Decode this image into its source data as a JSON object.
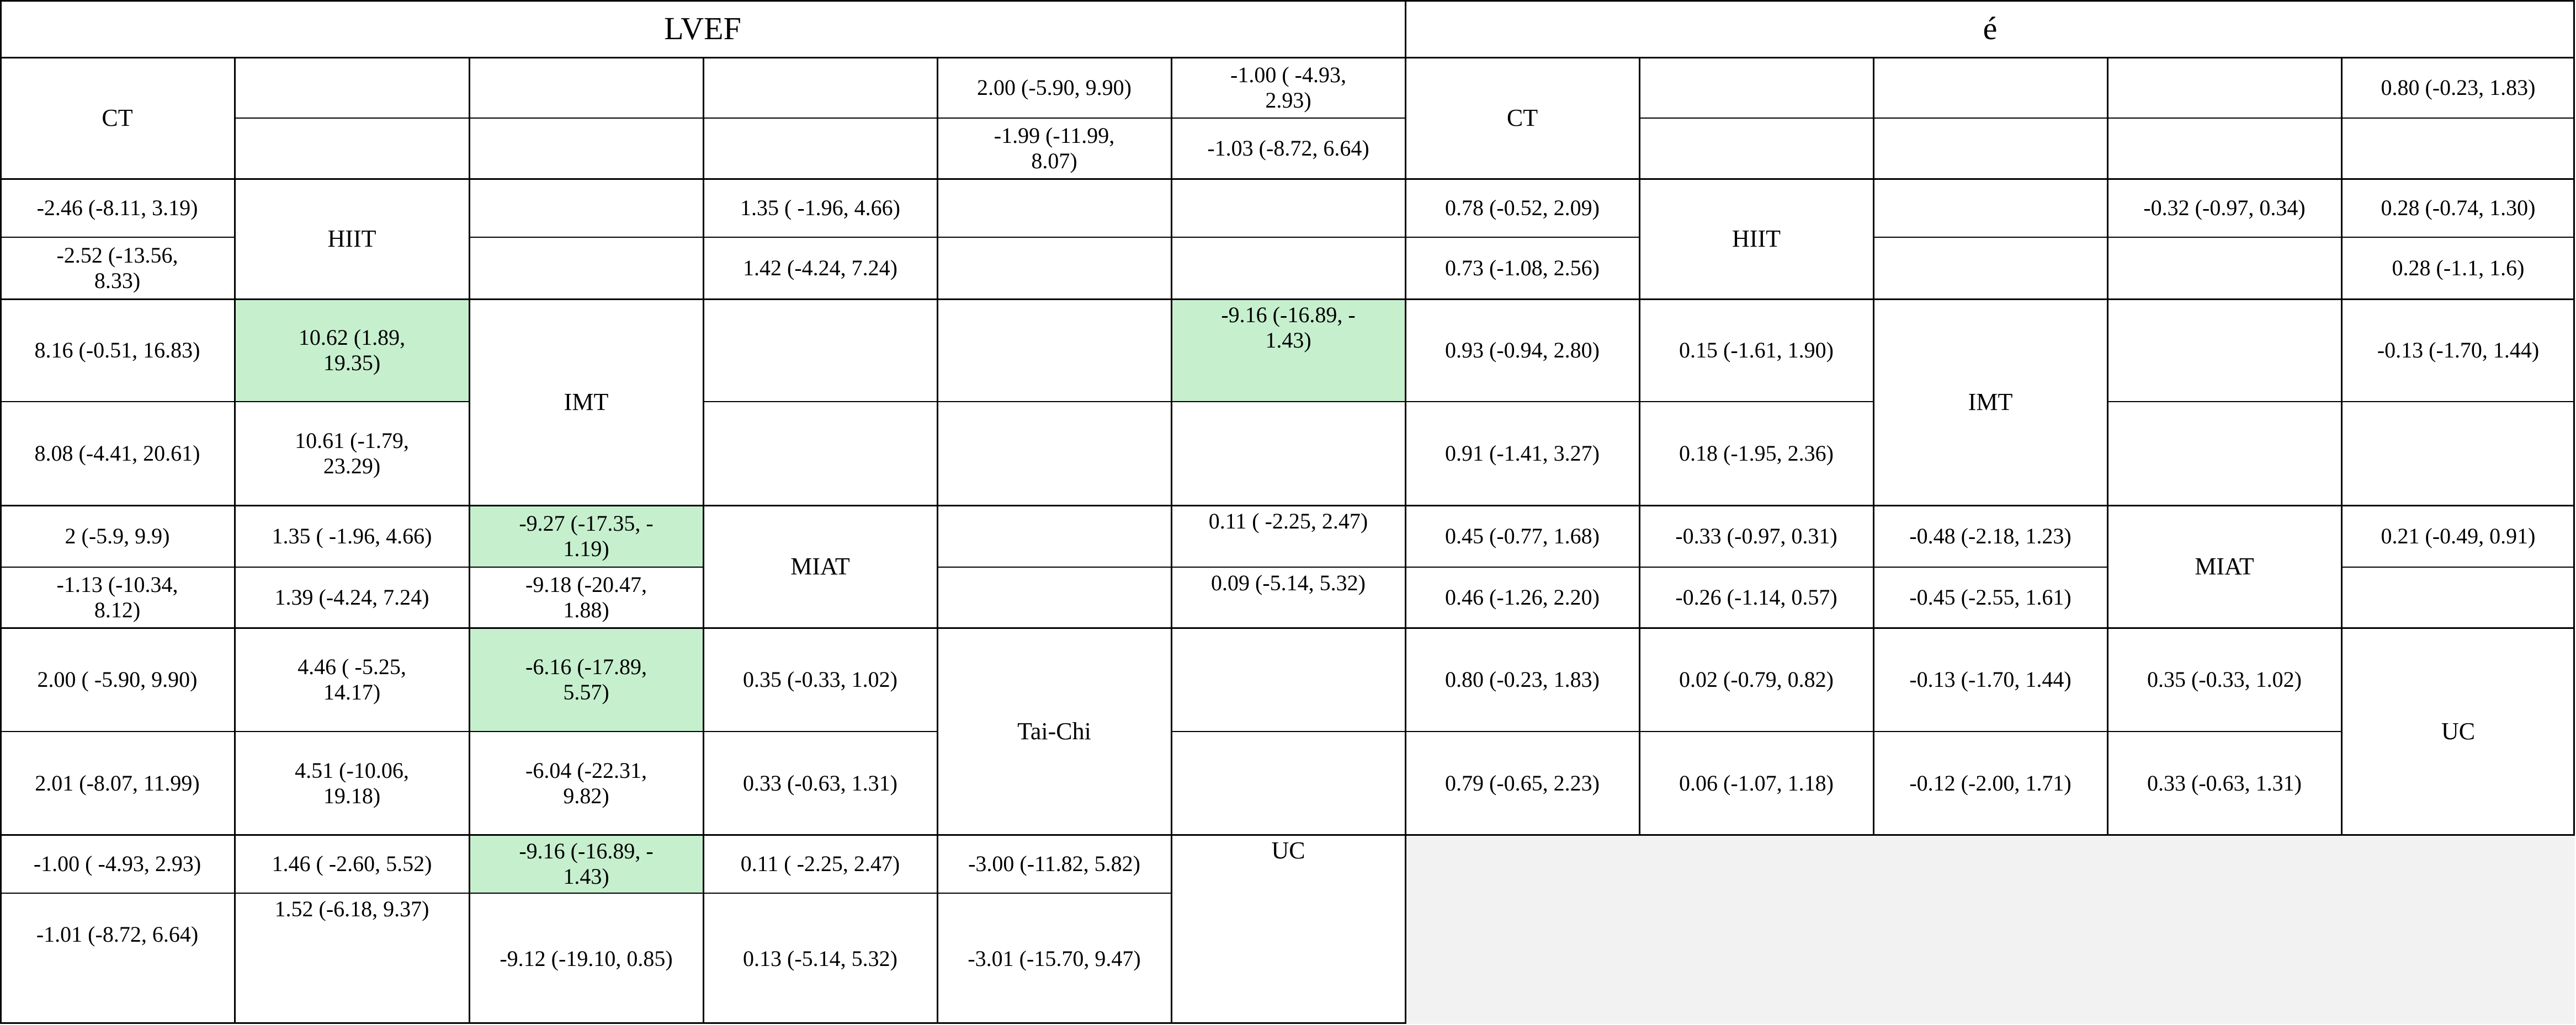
{
  "colors": {
    "grid": "#000000",
    "highlight": "#c6efce",
    "blank": "#f2f2f2"
  },
  "lvef": {
    "title": "LVEF",
    "labels": {
      "ct": "CT",
      "hiit": "HIIT",
      "imt": "IMT",
      "miat": "MIAT",
      "taichi": "Tai-Chi",
      "uc": "UC"
    },
    "ct_taichi_a": "2.00 (-5.90, 9.90)",
    "ct_uc_a": "-1.00 ( -4.93,\n2.93)",
    "ct_taichi_b": "-1.99 (-11.99,\n8.07)",
    "ct_uc_b": "-1.03 (-8.72, 6.64)",
    "hiit_ct_a": "-2.46 (-8.11, 3.19)",
    "hiit_miat_a": "1.35 ( -1.96, 4.66)",
    "hiit_ct_b": "-2.52 (-13.56,\n8.33)",
    "hiit_miat_b": "1.42 (-4.24, 7.24)",
    "imt_ct_a": "8.16 (-0.51, 16.83)",
    "imt_hiit_a": "10.62 (1.89,\n19.35)",
    "imt_uc_a": "-9.16 (-16.89, -\n1.43)",
    "imt_ct_b": "8.08 (-4.41, 20.61)",
    "imt_hiit_b": "10.61 (-1.79,\n23.29)",
    "miat_ct_a": "2 (-5.9, 9.9)",
    "miat_hiit_a": "1.35 ( -1.96, 4.66)",
    "miat_imt_a": "-9.27 (-17.35, -\n1.19)",
    "miat_uc_a": "0.11 ( -2.25, 2.47)",
    "miat_ct_b": "-1.13 (-10.34,\n8.12)",
    "miat_hiit_b": "1.39 (-4.24, 7.24)",
    "miat_imt_b": "-9.18 (-20.47,\n1.88)",
    "miat_uc_b": "0.09 (-5.14, 5.32)",
    "tc_ct_a": "2.00 ( -5.90, 9.90)",
    "tc_hiit_a": "4.46 ( -5.25,\n14.17)",
    "tc_imt_a": "-6.16 (-17.89,\n5.57)",
    "tc_miat_a": "0.35 (-0.33, 1.02)",
    "tc_ct_b": "2.01 (-8.07, 11.99)",
    "tc_hiit_b": "4.51 (-10.06,\n19.18)",
    "tc_imt_b": "-6.04 (-22.31,\n9.82)",
    "tc_miat_b": "0.33 (-0.63, 1.31)",
    "uc_ct_a": "-1.00 ( -4.93, 2.93)",
    "uc_hiit_a": "1.46 ( -2.60, 5.52)",
    "uc_imt_a": "-9.16 (-16.89, -\n1.43)",
    "uc_miat_a": "0.11 ( -2.25, 2.47)",
    "uc_taichi_a": "-3.00 (-11.82, 5.82)",
    "uc_ct_b": "-1.01 (-8.72, 6.64)",
    "uc_hiit_b": "1.52 (-6.18, 9.37)",
    "uc_imt_b": "-9.12 (-19.10, 0.85)",
    "uc_miat_b": "0.13 (-5.14, 5.32)",
    "uc_taichi_b": "-3.01 (-15.70, 9.47)"
  },
  "e": {
    "title": "é",
    "labels": {
      "ct": "CT",
      "hiit": "HIIT",
      "imt": "IMT",
      "miat": "MIAT",
      "uc": "UC"
    },
    "ct_uc_a": "0.80 (-0.23, 1.83)",
    "hiit_ct_a": "0.78 (-0.52, 2.09)",
    "hiit_miat_a": "-0.32 (-0.97, 0.34)",
    "hiit_uc_a": "0.28 (-0.74, 1.30)",
    "hiit_ct_b": "0.73 (-1.08, 2.56)",
    "hiit_uc_b": "0.28 (-1.1, 1.6)",
    "imt_ct_a": "0.93 (-0.94, 2.80)",
    "imt_hiit_a": "0.15 (-1.61, 1.90)",
    "imt_uc_a": "-0.13 (-1.70, 1.44)",
    "imt_ct_b": "0.91 (-1.41, 3.27)",
    "imt_hiit_b": "0.18 (-1.95, 2.36)",
    "miat_ct_a": "0.45 (-0.77, 1.68)",
    "miat_hiit_a": "-0.33 (-0.97, 0.31)",
    "miat_imt_a": "-0.48 (-2.18, 1.23)",
    "miat_uc_a": "0.21 (-0.49, 0.91)",
    "miat_ct_b": "0.46 (-1.26, 2.20)",
    "miat_hiit_b": "-0.26 (-1.14, 0.57)",
    "miat_imt_b": "-0.45 (-2.55, 1.61)",
    "uc_ct_a": "0.80 (-0.23, 1.83)",
    "uc_hiit_a": "0.02 (-0.79, 0.82)",
    "uc_imt_a": "-0.13 (-1.70, 1.44)",
    "uc_miat_a": "0.35 (-0.33, 1.02)",
    "uc_ct_b": "0.79 (-0.65, 2.23)",
    "uc_hiit_b": "0.06 (-1.07, 1.18)",
    "uc_imt_b": "-0.12 (-2.00, 1.71)",
    "uc_miat_b": "0.33 (-0.63, 1.31)"
  }
}
